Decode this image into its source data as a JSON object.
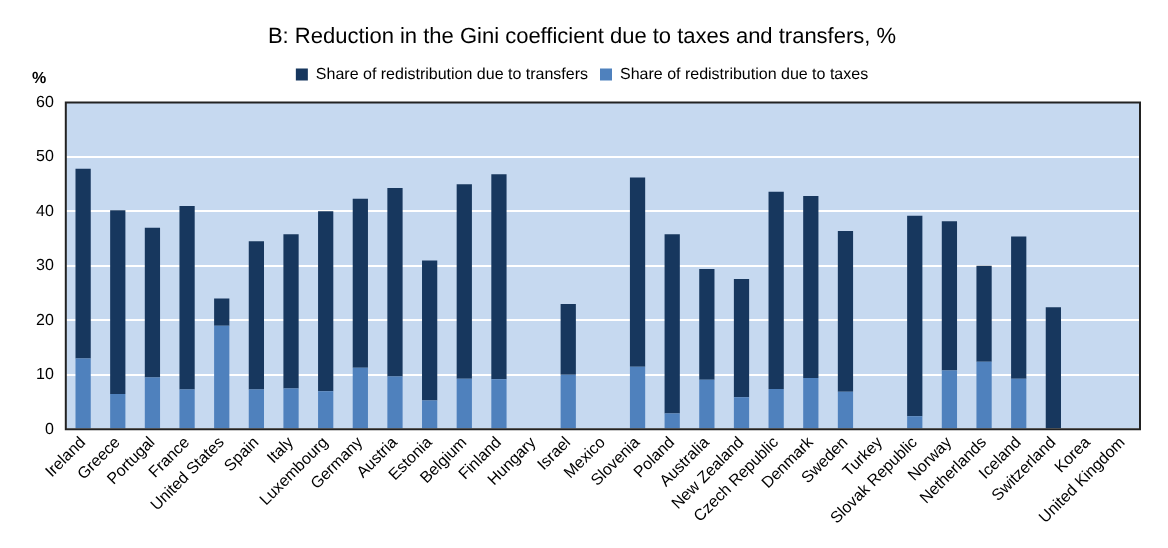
{
  "chart_data": {
    "type": "bar",
    "title": "B: Reduction in the Gini coefficient due to taxes and transfers, %",
    "ylabel": "%",
    "categories": [
      "Ireland",
      "Greece",
      "Portugal",
      "France",
      "United States",
      "Spain",
      "Italy",
      "Luxembourg",
      "Germany",
      "Austria",
      "Estonia",
      "Belgium",
      "Finland",
      "Hungary",
      "Israel",
      "Mexico",
      "Slovenia",
      "Poland",
      "Australia",
      "New Zealand",
      "Czech Republic",
      "Denmark",
      "Sweden",
      "Turkey",
      "Slovak Republic",
      "Norway",
      "Netherlands",
      "Iceland",
      "Switzerland",
      "Korea",
      "United Kingdom"
    ],
    "stacked": true,
    "series": [
      {
        "name": "Share of redistribution due to taxes",
        "color": "#4f81bd",
        "values": [
          13,
          6.5,
          9.5,
          7.3,
          19,
          7.3,
          7.5,
          7,
          11.3,
          9.7,
          5.3,
          9.3,
          9.2,
          null,
          10,
          null,
          11.5,
          2.9,
          9.1,
          5.9,
          7.4,
          9.4,
          6.9,
          null,
          2.4,
          10.8,
          12.4,
          9.3,
          0,
          null,
          null
        ]
      },
      {
        "name": "Share of redistribution due to transfers",
        "color": "#17375e",
        "values": [
          34.8,
          33.7,
          27.5,
          33.7,
          5,
          27.2,
          28.3,
          33,
          31,
          34.6,
          25.7,
          35.7,
          37.6,
          null,
          13,
          null,
          34.7,
          32.9,
          20.3,
          21.7,
          36.2,
          33.4,
          29.5,
          null,
          36.8,
          27.4,
          17.6,
          26.1,
          22.4,
          null,
          null
        ]
      }
    ],
    "ylim": [
      0,
      60
    ],
    "yticks": [
      0,
      10,
      20,
      30,
      40,
      50,
      60
    ],
    "grid": "y",
    "legend": "top"
  }
}
